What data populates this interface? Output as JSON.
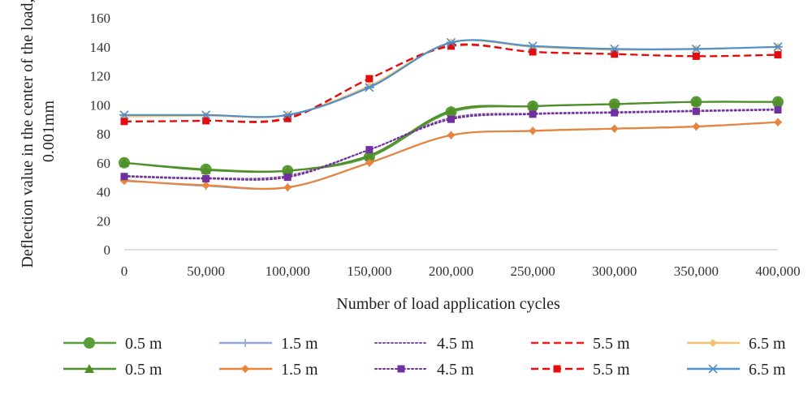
{
  "chart_data": {
    "type": "line",
    "title": "",
    "xlabel": "Number of load application cycles",
    "ylabel": "Deflection value in the center of the load, 0.001mm",
    "ylabel_lines": [
      "Deflection value in the center of the load,",
      "0.001mm"
    ],
    "x": [
      0,
      50000,
      100000,
      150000,
      200000,
      250000,
      300000,
      350000,
      400000
    ],
    "x_tick_labels": [
      "0",
      "50,000",
      "100,000",
      "150,000",
      "200,000",
      "250,000",
      "300,000",
      "350,000",
      "400,000"
    ],
    "ylim": [
      0,
      160
    ],
    "y_ticks": [
      0,
      20,
      40,
      60,
      80,
      100,
      120,
      140,
      160
    ],
    "grid": false,
    "legend_position": "bottom",
    "series": [
      {
        "name": "0.5 m",
        "color": "#5a9d37",
        "dash": "solid",
        "marker": "circle",
        "values": [
          60,
          55.5,
          54.5,
          64,
          95,
          99,
          100.5,
          102,
          102
        ]
      },
      {
        "name": "1.5 m",
        "color": "#8fa6d6",
        "dash": "solid",
        "marker": "plus",
        "values": [
          48,
          44,
          43,
          60,
          79,
          82,
          83.5,
          85,
          88
        ]
      },
      {
        "name": "4.5 m",
        "color": "#7f4aa8",
        "dash": "dotted",
        "marker": "none",
        "values": [
          51,
          49.5,
          51,
          69,
          91,
          94,
          95,
          96,
          97
        ]
      },
      {
        "name": "5.5 m",
        "color": "#e8201c",
        "dash": "dashed",
        "marker": "none",
        "values": [
          88.5,
          89,
          91,
          118,
          141,
          136.5,
          135,
          133.5,
          134.5
        ]
      },
      {
        "name": "6.5 m",
        "color": "#f2c472",
        "dash": "solid",
        "marker": "diamond",
        "values": [
          92,
          92.5,
          93,
          113,
          143,
          140,
          138,
          138.5,
          140
        ]
      },
      {
        "name": "0.5 m",
        "color": "#4f8f2a",
        "dash": "solid",
        "marker": "triangle",
        "values": [
          60,
          55,
          54.5,
          65,
          96,
          99,
          100.5,
          102,
          102
        ]
      },
      {
        "name": "1.5 m",
        "color": "#e8853b",
        "dash": "solid",
        "marker": "diamond",
        "values": [
          47.5,
          44.5,
          43,
          60,
          79,
          82,
          83.5,
          85,
          88
        ]
      },
      {
        "name": "4.5 m",
        "color": "#7030a0",
        "dash": "dotted",
        "marker": "square",
        "values": [
          50.5,
          49,
          50,
          69,
          90,
          93.5,
          94.5,
          95.5,
          96.5
        ]
      },
      {
        "name": "5.5 m",
        "color": "#e30d0d",
        "dash": "dashed",
        "marker": "square",
        "values": [
          88.5,
          89,
          90.5,
          118,
          140.5,
          136.5,
          135,
          133.5,
          134.5
        ]
      },
      {
        "name": "6.5 m",
        "color": "#4e8fcc",
        "dash": "solid",
        "marker": "asterisk",
        "values": [
          93,
          93,
          93,
          112,
          143,
          140.5,
          138.5,
          138.5,
          140
        ]
      }
    ]
  }
}
